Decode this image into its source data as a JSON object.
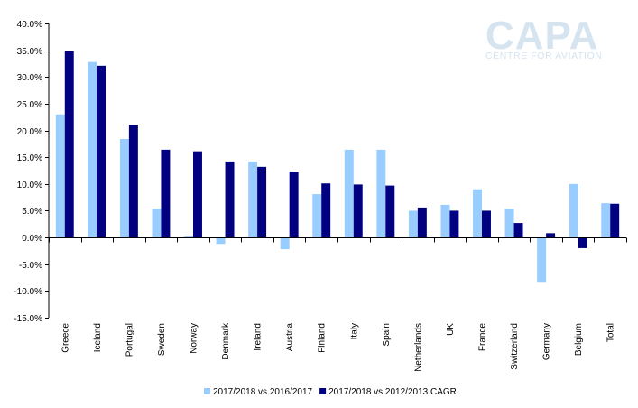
{
  "watermark": {
    "main": "CAPA",
    "sub": "CENTRE FOR AVIATION"
  },
  "colors": {
    "series1": "#99ccff",
    "series2": "#000080",
    "axis": "#000000",
    "watermark": "#d6e4f0"
  },
  "chart_data": {
    "type": "bar",
    "title": "",
    "xlabel": "",
    "ylabel": "",
    "ylim": [
      -15,
      40
    ],
    "ytick_step": 5,
    "ytick_format": "percent_1dp",
    "grid": false,
    "legend_position": "bottom",
    "categories": [
      "Greece",
      "Iceland",
      "Portugal",
      "Sweden",
      "Norway",
      "Denmark",
      "Ireland",
      "Austria",
      "Finland",
      "Italy",
      "Spain",
      "Netherlands",
      "UK",
      "France",
      "Switzerland",
      "Germany",
      "Belgium",
      "Total"
    ],
    "series": [
      {
        "name": "2017/2018 vs 2016/2017",
        "color": "#99ccff",
        "values": [
          23.0,
          32.8,
          18.4,
          5.4,
          0.2,
          -1.2,
          14.2,
          -2.2,
          8.1,
          16.4,
          16.4,
          5.0,
          6.1,
          9.0,
          5.4,
          -8.3,
          10.0,
          6.4
        ]
      },
      {
        "name": "2017/2018 vs 2012/2013 CAGR",
        "color": "#000080",
        "values": [
          34.8,
          32.1,
          21.1,
          16.4,
          16.1,
          14.2,
          13.2,
          12.3,
          10.1,
          9.9,
          9.7,
          5.6,
          5.0,
          5.0,
          2.7,
          0.8,
          -2.0,
          6.3
        ]
      }
    ]
  }
}
